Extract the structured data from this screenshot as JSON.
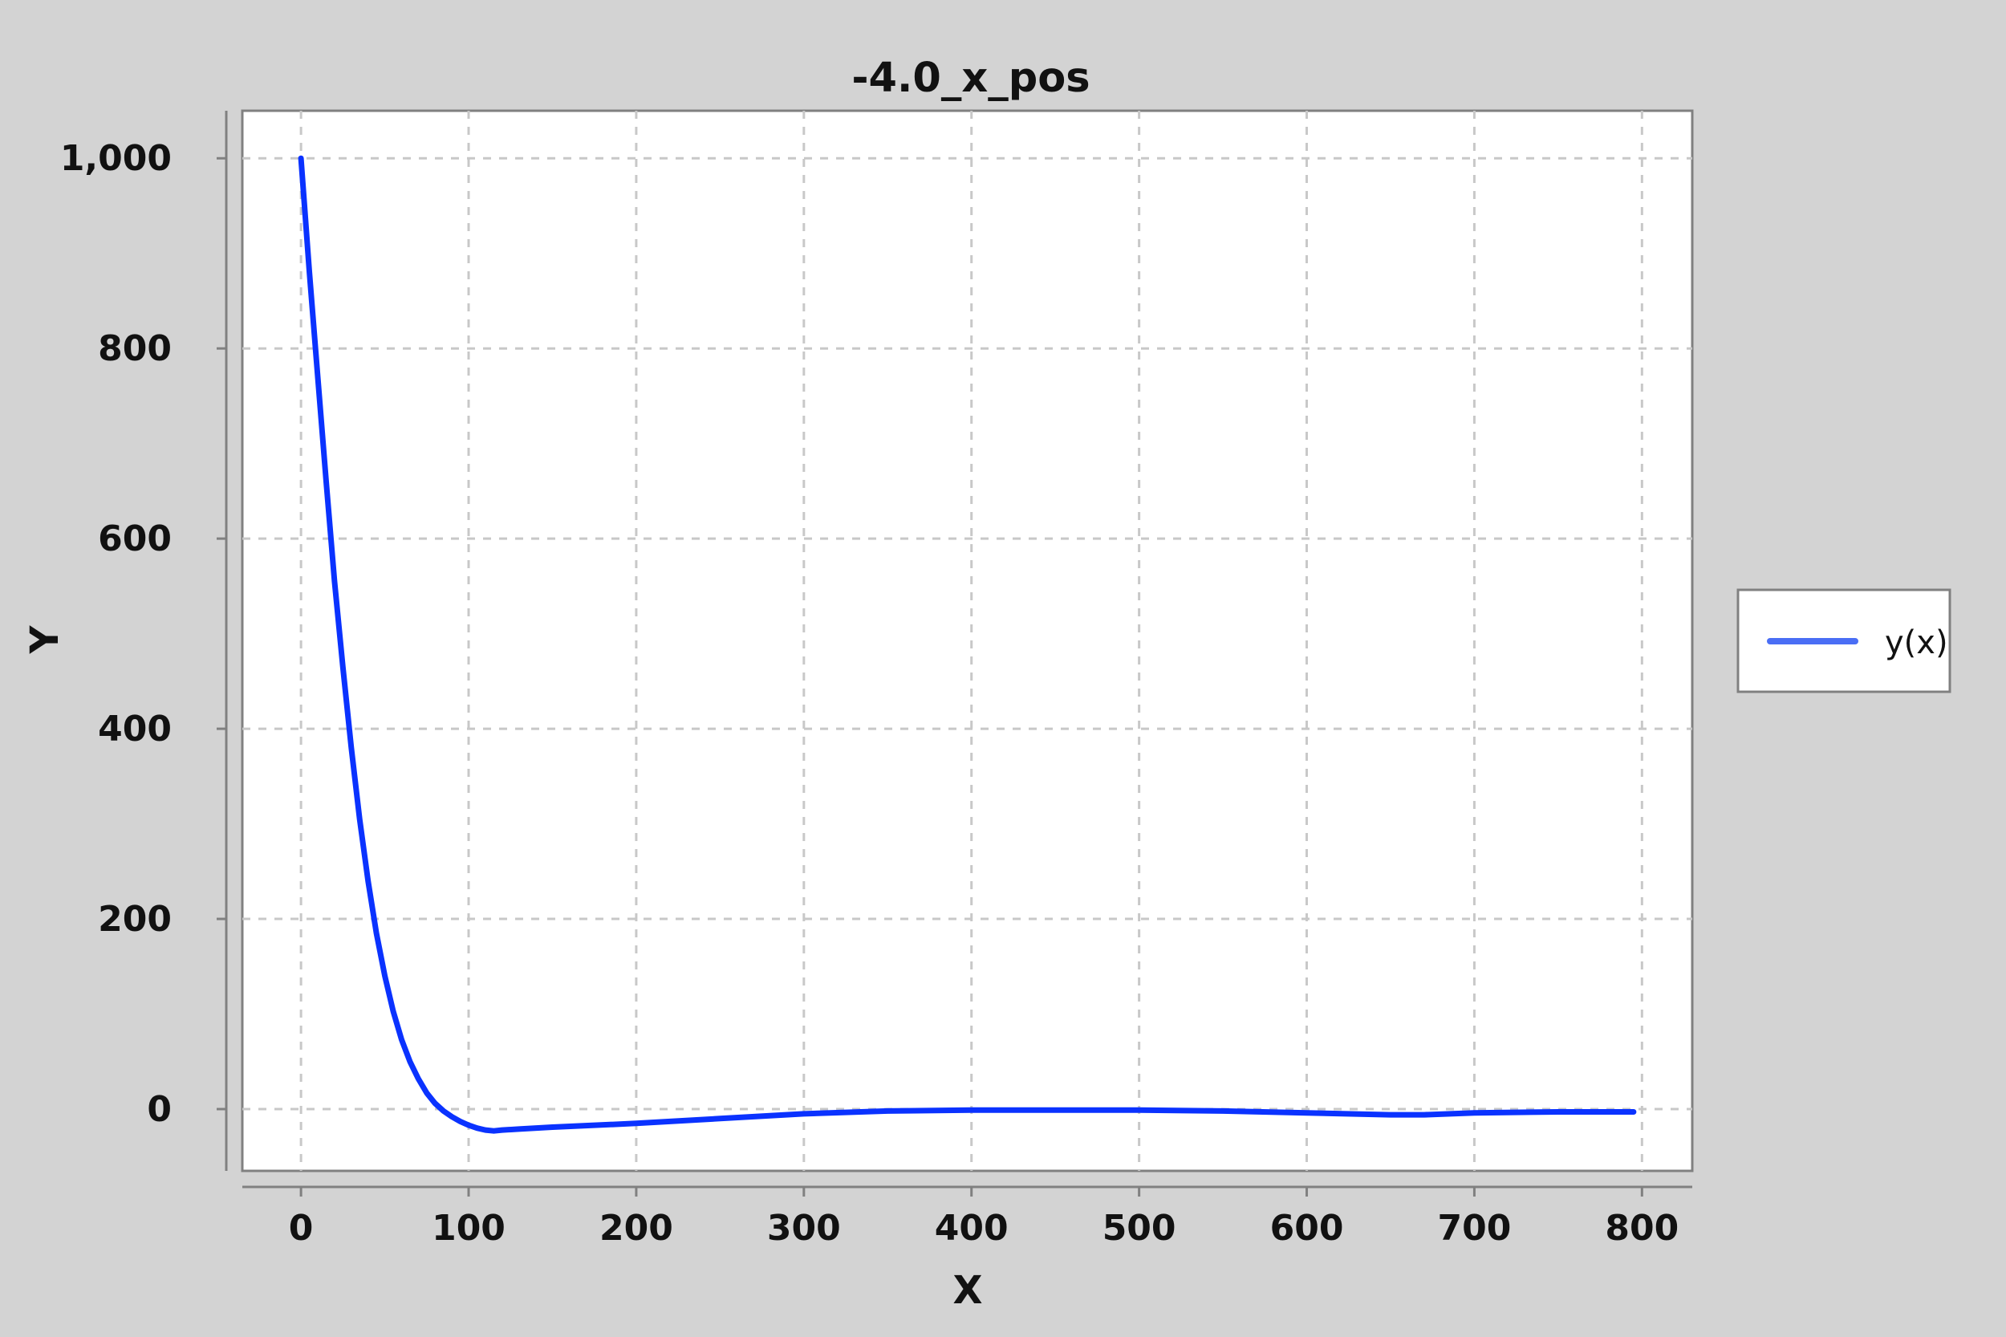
{
  "chart_data": {
    "type": "line",
    "title": "-4.0_x_pos",
    "xlabel": "X",
    "ylabel": "Y",
    "xlim": [
      -35,
      830
    ],
    "ylim": [
      -65,
      1050
    ],
    "x_ticks": [
      0,
      100,
      200,
      300,
      400,
      500,
      600,
      700,
      800
    ],
    "y_ticks": [
      0,
      200,
      400,
      600,
      800,
      1000
    ],
    "x_tick_labels": [
      "0",
      "100",
      "200",
      "300",
      "400",
      "500",
      "600",
      "700",
      "800"
    ],
    "y_tick_labels": [
      "0",
      "200",
      "400",
      "600",
      "800",
      "1,000"
    ],
    "grid": true,
    "legend": "right",
    "series": [
      {
        "name": "y(x)",
        "color": "#0a32ff",
        "x": [
          0,
          5,
          10,
          15,
          20,
          25,
          30,
          35,
          40,
          45,
          50,
          55,
          60,
          65,
          70,
          75,
          80,
          85,
          90,
          95,
          100,
          105,
          110,
          115,
          120,
          130,
          150,
          200,
          250,
          300,
          350,
          400,
          450,
          500,
          550,
          600,
          650,
          670,
          700,
          750,
          795
        ],
        "y": [
          1000,
          880,
          770,
          660,
          555,
          465,
          380,
          305,
          240,
          185,
          140,
          103,
          73,
          50,
          32,
          17,
          6,
          -2,
          -8,
          -13,
          -17,
          -20,
          -22,
          -23,
          -22,
          -21,
          -19,
          -15,
          -10,
          -5,
          -2,
          -1,
          -1,
          -1,
          -2,
          -4,
          -6,
          -6,
          -4,
          -3,
          -3
        ]
      }
    ]
  }
}
